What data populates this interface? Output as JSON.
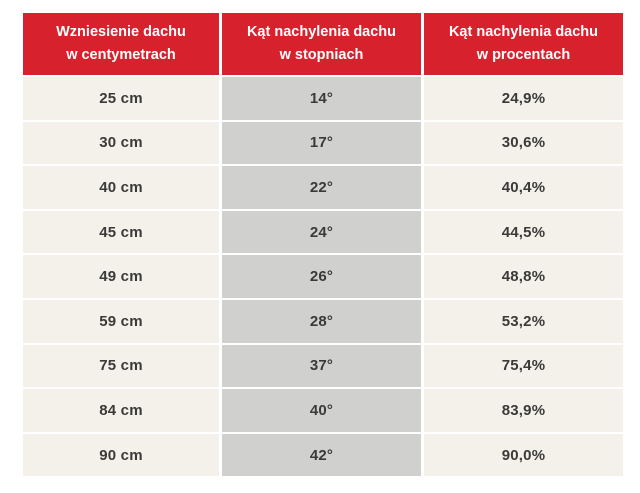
{
  "colors": {
    "accent": "#d7212c",
    "cell-cream": "#f4f1ea",
    "cell-gray": "#d0d0ce",
    "text-dark": "#3a3a39",
    "header-text": "#ffffff",
    "page-bg": "#ffffff"
  },
  "table": {
    "headers": [
      {
        "line1": "Wzniesienie dachu",
        "line2": "w centymetrach"
      },
      {
        "line1": "Kąt nachylenia dachu",
        "line2": "w stopniach"
      },
      {
        "line1": "Kąt nachylenia dachu",
        "line2": "w procentach"
      }
    ],
    "rows": [
      [
        "25 cm",
        "14°",
        "24,9%"
      ],
      [
        "30 cm",
        "17°",
        "30,6%"
      ],
      [
        "40 cm",
        "22°",
        "40,4%"
      ],
      [
        "45 cm",
        "24°",
        "44,5%"
      ],
      [
        "49 cm",
        "26°",
        "48,8%"
      ],
      [
        "59 cm",
        "28°",
        "53,2%"
      ],
      [
        "75 cm",
        "37°",
        "75,4%"
      ],
      [
        "84 cm",
        "40°",
        "83,9%"
      ],
      [
        "90 cm",
        "42°",
        "90,0%"
      ]
    ]
  },
  "chart_data": {
    "type": "table",
    "title": "",
    "columns": [
      "Wzniesienie dachu w centymetrach",
      "Kąt nachylenia dachu w stopniach",
      "Kąt nachylenia dachu w procentach"
    ],
    "rows": [
      [
        "25 cm",
        "14°",
        "24,9%"
      ],
      [
        "30 cm",
        "17°",
        "30,6%"
      ],
      [
        "40 cm",
        "22°",
        "40,4%"
      ],
      [
        "45 cm",
        "24°",
        "44,5%"
      ],
      [
        "49 cm",
        "26°",
        "48,8%"
      ],
      [
        "59 cm",
        "28°",
        "53,2%"
      ],
      [
        "75 cm",
        "37°",
        "75,4%"
      ],
      [
        "84 cm",
        "40°",
        "83,9%"
      ],
      [
        "90 cm",
        "42°",
        "90,0%"
      ]
    ],
    "series": [
      {
        "name": "Wzniesienie dachu (cm)",
        "values": [
          25,
          30,
          40,
          45,
          49,
          59,
          75,
          84,
          90
        ]
      },
      {
        "name": "Kąt nachylenia dachu (stopnie)",
        "values": [
          14,
          17,
          22,
          24,
          26,
          28,
          37,
          40,
          42
        ]
      },
      {
        "name": "Kąt nachylenia dachu (procenty)",
        "values": [
          24.9,
          30.6,
          40.4,
          44.5,
          48.8,
          53.2,
          75.4,
          83.9,
          90.0
        ]
      }
    ],
    "layout": {
      "header_bg": "#d7212c",
      "col1_bg": "#f4f1ea",
      "col2_bg": "#d0d0ce",
      "col3_bg": "#f4f1ea",
      "grid": false
    }
  }
}
